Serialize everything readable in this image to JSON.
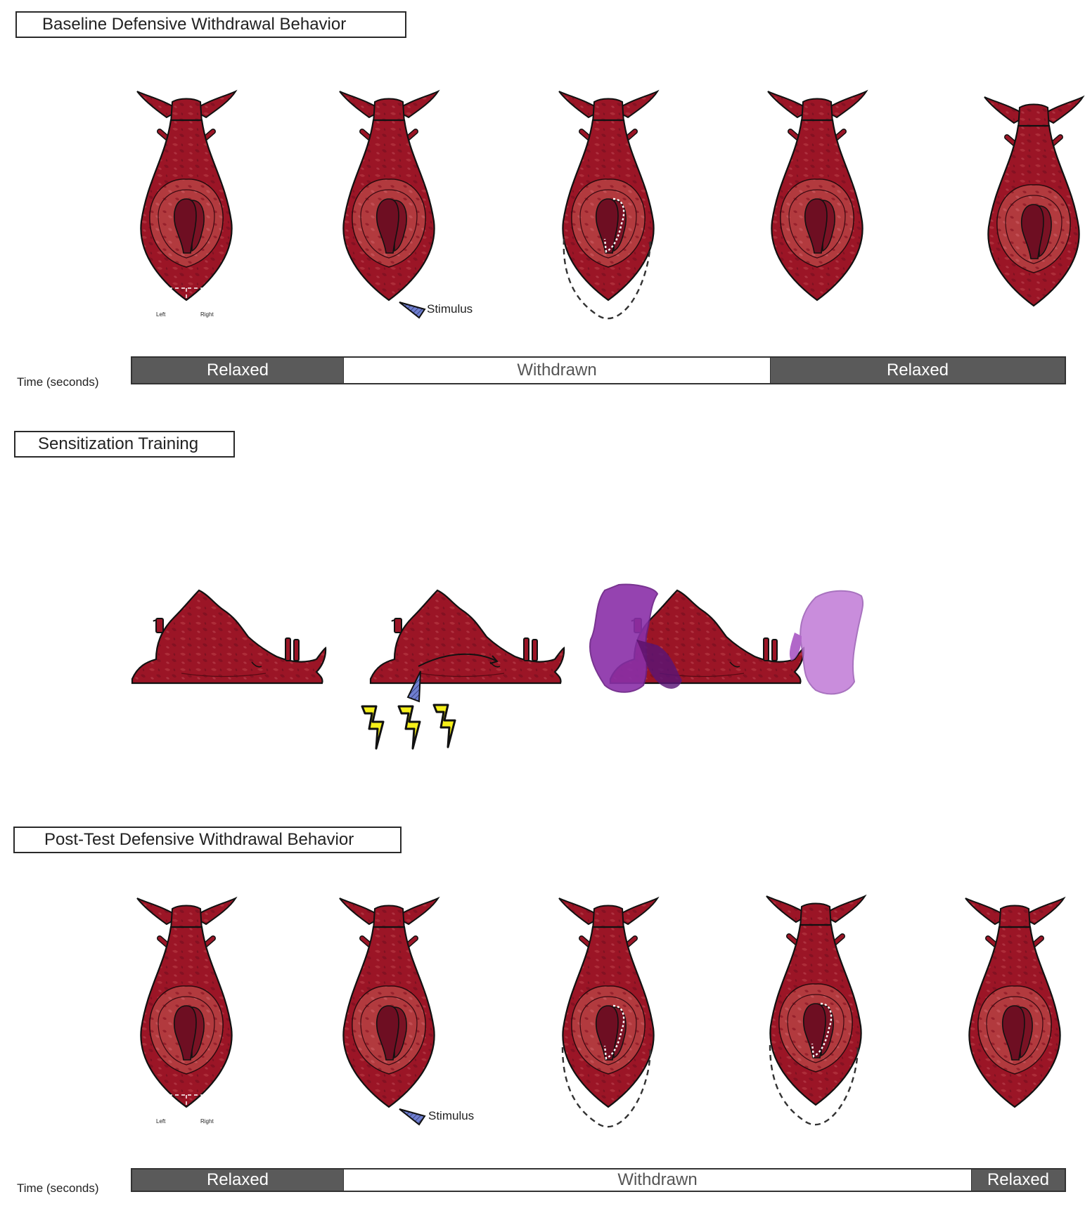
{
  "sections": {
    "baseline": {
      "title": "Baseline Defensive Withdrawal Behavior",
      "time_label": "Time (seconds)",
      "timeline": [
        {
          "label": "Relaxed",
          "state": "relaxed"
        },
        {
          "label": "Withdrawn",
          "state": "withdrawn"
        },
        {
          "label": "Relaxed",
          "state": "relaxed"
        }
      ],
      "stimulus_label": "Stimulus",
      "left_label": "Left",
      "right_label": "Right"
    },
    "sensitization": {
      "title": "Sensitization Training"
    },
    "posttest": {
      "title": "Post-Test Defensive Withdrawal Behavior",
      "time_label": "Time (seconds)",
      "timeline": [
        {
          "label": "Relaxed",
          "state": "relaxed"
        },
        {
          "label": "Withdrawn",
          "state": "withdrawn"
        },
        {
          "label": "Relaxed",
          "state": "relaxed"
        }
      ],
      "stimulus_label": "Stimulus",
      "left_label": "Left",
      "right_label": "Right"
    }
  },
  "colors": {
    "body": "#9b1526",
    "body_dark": "#7a0f1d",
    "mantle": "#b8353a",
    "gill": "#6e0e22",
    "ink_dark": "#8a2fa8",
    "ink_light": "#c07ad6",
    "shock": "#f5ef1a",
    "stimulus": "#6f7fd0",
    "timebar_relaxed": "#5a5a5a"
  },
  "icons": [
    "aplysia-top-view",
    "aplysia-side-view",
    "stimulus-probe-icon",
    "lightning-bolt-icon",
    "ink-cloud-icon"
  ]
}
